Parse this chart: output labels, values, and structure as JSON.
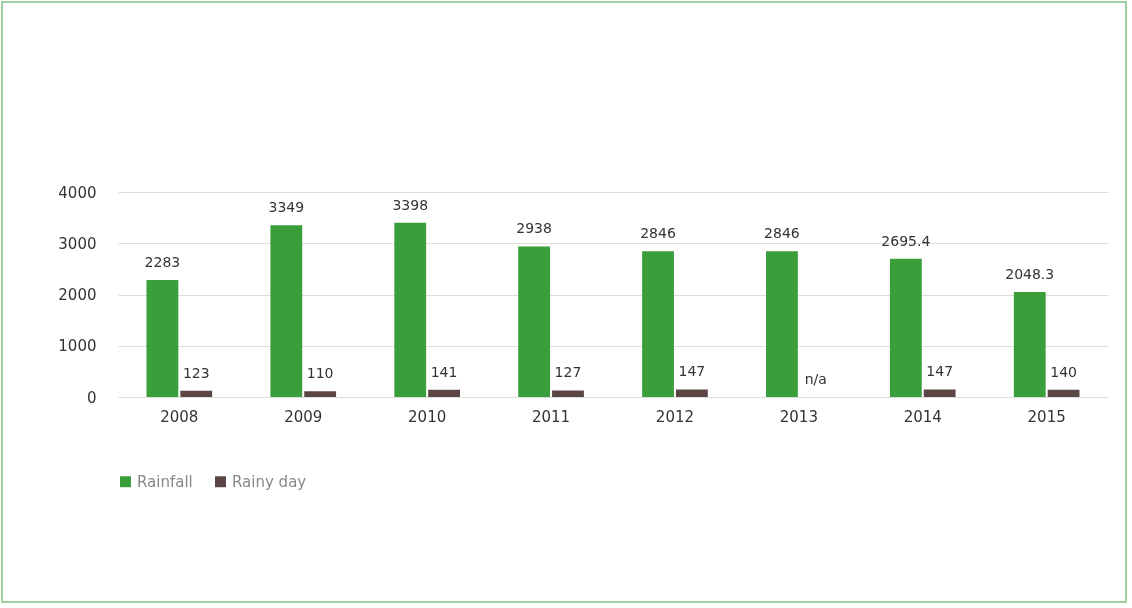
{
  "chart_data": {
    "type": "bar",
    "categories": [
      "2008",
      "2009",
      "2010",
      "2011",
      "2012",
      "2013",
      "2014",
      "2015"
    ],
    "series": [
      {
        "name": "Rainfall",
        "color": "#3a9e3a",
        "values": [
          2283,
          3349,
          3398,
          2938,
          2846,
          2846,
          2695.4,
          2048.3
        ],
        "value_labels": [
          "2283",
          "3349",
          "3398",
          "2938",
          "2846",
          "2846",
          "2695.4",
          "2048.3"
        ]
      },
      {
        "name": "Rainy day",
        "color": "#5b4646",
        "values": [
          123,
          110,
          141,
          127,
          147,
          null,
          147,
          140
        ],
        "value_labels": [
          "123",
          "110",
          "141",
          "127",
          "147",
          "n/a",
          "147",
          "140"
        ]
      }
    ],
    "ylim": [
      0,
      4000
    ],
    "yticks": [
      0,
      1000,
      2000,
      3000,
      4000
    ],
    "grid": "y",
    "legend": "bottom"
  }
}
